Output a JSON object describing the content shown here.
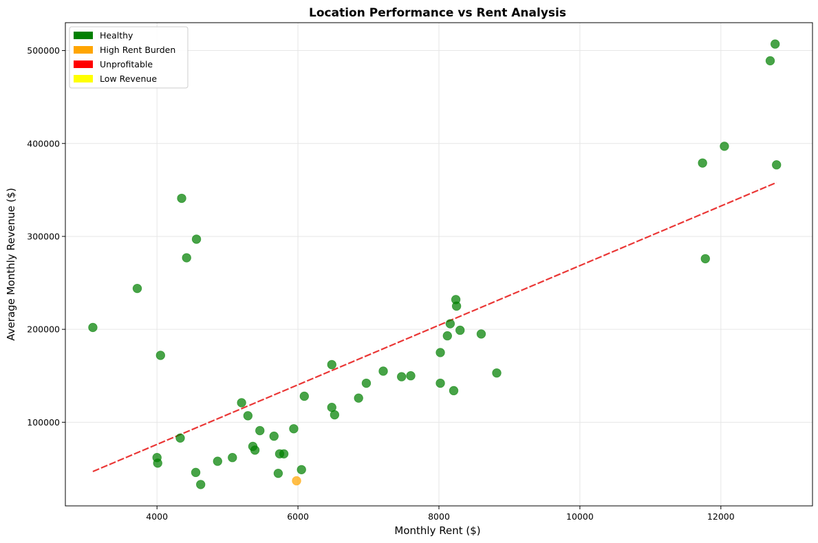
{
  "chart_data": {
    "type": "scatter",
    "title": "Location Performance vs Rent Analysis",
    "xlabel": "Monthly Rent ($)",
    "ylabel": "Average Monthly Revenue ($)",
    "xlim": [
      2700,
      13300
    ],
    "ylim": [
      10000,
      530000
    ],
    "xticks": [
      4000,
      6000,
      8000,
      10000,
      12000
    ],
    "yticks": [
      100000,
      200000,
      300000,
      400000,
      500000
    ],
    "grid": true,
    "legend_position": "upper-left",
    "legend": [
      {
        "label": "Healthy",
        "color": "#008000"
      },
      {
        "label": "High Rent Burden",
        "color": "#FFA500"
      },
      {
        "label": "Unprofitable",
        "color": "#FF0000"
      },
      {
        "label": "Low Revenue",
        "color": "#FFFF00"
      }
    ],
    "trendline": {
      "color": "#E8201F",
      "x": [
        3090,
        12790
      ],
      "y": [
        47000,
        358000
      ]
    },
    "points": [
      {
        "x": 3090,
        "y": 202000,
        "status": "Healthy"
      },
      {
        "x": 3720,
        "y": 244000,
        "status": "Healthy"
      },
      {
        "x": 4000,
        "y": 62000,
        "status": "Healthy"
      },
      {
        "x": 4010,
        "y": 56000,
        "status": "Healthy"
      },
      {
        "x": 4050,
        "y": 172000,
        "status": "Healthy"
      },
      {
        "x": 4330,
        "y": 83000,
        "status": "Healthy"
      },
      {
        "x": 4350,
        "y": 341000,
        "status": "Healthy"
      },
      {
        "x": 4420,
        "y": 277000,
        "status": "Healthy"
      },
      {
        "x": 4550,
        "y": 46000,
        "status": "Healthy"
      },
      {
        "x": 4560,
        "y": 297000,
        "status": "Healthy"
      },
      {
        "x": 4620,
        "y": 33000,
        "status": "Healthy"
      },
      {
        "x": 4860,
        "y": 58000,
        "status": "Healthy"
      },
      {
        "x": 5070,
        "y": 62000,
        "status": "Healthy"
      },
      {
        "x": 5200,
        "y": 121000,
        "status": "Healthy"
      },
      {
        "x": 5290,
        "y": 107000,
        "status": "Healthy"
      },
      {
        "x": 5360,
        "y": 74000,
        "status": "Healthy"
      },
      {
        "x": 5390,
        "y": 70000,
        "status": "Healthy"
      },
      {
        "x": 5460,
        "y": 91000,
        "status": "Healthy"
      },
      {
        "x": 5660,
        "y": 85000,
        "status": "Healthy"
      },
      {
        "x": 5720,
        "y": 45000,
        "status": "Healthy"
      },
      {
        "x": 5740,
        "y": 66000,
        "status": "Healthy"
      },
      {
        "x": 5800,
        "y": 66000,
        "status": "Healthy"
      },
      {
        "x": 5940,
        "y": 93000,
        "status": "Healthy"
      },
      {
        "x": 5980,
        "y": 37000,
        "status": "High Rent Burden"
      },
      {
        "x": 6050,
        "y": 49000,
        "status": "Healthy"
      },
      {
        "x": 6090,
        "y": 128000,
        "status": "Healthy"
      },
      {
        "x": 6480,
        "y": 162000,
        "status": "Healthy"
      },
      {
        "x": 6480,
        "y": 116000,
        "status": "Healthy"
      },
      {
        "x": 6520,
        "y": 108000,
        "status": "Healthy"
      },
      {
        "x": 6860,
        "y": 126000,
        "status": "Healthy"
      },
      {
        "x": 6970,
        "y": 142000,
        "status": "Healthy"
      },
      {
        "x": 7210,
        "y": 155000,
        "status": "Healthy"
      },
      {
        "x": 7470,
        "y": 149000,
        "status": "Healthy"
      },
      {
        "x": 7600,
        "y": 150000,
        "status": "Healthy"
      },
      {
        "x": 8020,
        "y": 175000,
        "status": "Healthy"
      },
      {
        "x": 8020,
        "y": 142000,
        "status": "Healthy"
      },
      {
        "x": 8120,
        "y": 193000,
        "status": "Healthy"
      },
      {
        "x": 8160,
        "y": 206000,
        "status": "Healthy"
      },
      {
        "x": 8210,
        "y": 134000,
        "status": "Healthy"
      },
      {
        "x": 8240,
        "y": 232000,
        "status": "Healthy"
      },
      {
        "x": 8250,
        "y": 225000,
        "status": "Healthy"
      },
      {
        "x": 8300,
        "y": 199000,
        "status": "Healthy"
      },
      {
        "x": 8600,
        "y": 195000,
        "status": "Healthy"
      },
      {
        "x": 8820,
        "y": 153000,
        "status": "Healthy"
      },
      {
        "x": 11740,
        "y": 379000,
        "status": "Healthy"
      },
      {
        "x": 11780,
        "y": 276000,
        "status": "Healthy"
      },
      {
        "x": 12050,
        "y": 397000,
        "status": "Healthy"
      },
      {
        "x": 12700,
        "y": 489000,
        "status": "Healthy"
      },
      {
        "x": 12770,
        "y": 507000,
        "status": "Healthy"
      },
      {
        "x": 12790,
        "y": 377000,
        "status": "Healthy"
      }
    ]
  }
}
